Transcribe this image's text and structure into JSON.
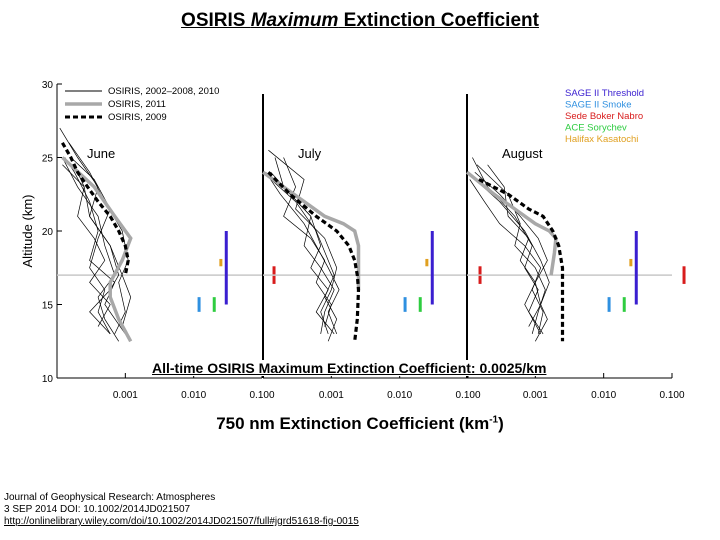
{
  "slide": {
    "title_prefix": "OSIRIS ",
    "title_emph": "Maximum",
    "title_suffix": " Extinction Coefficient",
    "overlay_text": "All-time OSIRIS Maximum Extinction Coefficient: 0.0025/km",
    "caption_main": "750 nm Extinction Coefficient (km",
    "caption_sup": "-1",
    "caption_end": ")",
    "citation": {
      "journal": "Journal of Geophysical Research: Atmospheres",
      "date_doi": "3 SEP 2014 DOI: 10.1002/2014JD021507",
      "url": "http://onlinelibrary.wiley.com/doi/10.1002/2014JD021507/full#jgrd51618-fig-0015"
    }
  },
  "chart_data": {
    "type": "line",
    "ylabel": "Altitude (km)",
    "ylim": [
      10,
      30
    ],
    "yticks": [
      "10",
      "15",
      "20",
      "25",
      "30"
    ],
    "xscale": "log",
    "xlim": [
      0.0001,
      0.1
    ],
    "xticks": [
      "0.001",
      "0.010",
      "0.100"
    ],
    "tropopause_km": 17,
    "legend_left": [
      {
        "label": "OSIRIS, 2002–2008, 2010",
        "style": "thin-black"
      },
      {
        "label": "OSIRIS, 2011",
        "style": "thick-gray"
      },
      {
        "label": "OSIRIS, 2009",
        "style": "thick-dashed-black"
      }
    ],
    "legend_right": [
      {
        "label": "SAGE II Threshold",
        "color": "#3a1fd0"
      },
      {
        "label": "SAGE II Smoke",
        "color": "#2f90e0"
      },
      {
        "label": "Sede Boker Nabro",
        "color": "#d81c1c"
      },
      {
        "label": "ACE Sorychev",
        "color": "#2ecc40"
      },
      {
        "label": "Halifax Kasatochi",
        "color": "#e0a020"
      }
    ],
    "panels": [
      {
        "label": "June",
        "series_2011": {
          "x": [
            0.00012,
            0.00035,
            0.0007,
            0.0012,
            0.0009,
            0.0006,
            0.0006,
            0.0008,
            0.0012
          ],
          "y": [
            25,
            23,
            21,
            19.5,
            18,
            16.5,
            15.5,
            14,
            12.5
          ]
        },
        "series_2009": {
          "x": [
            0.00012,
            0.00016,
            0.0002,
            0.00028,
            0.0004,
            0.0006,
            0.0008,
            0.001,
            0.0011,
            0.001
          ],
          "y": [
            26,
            25,
            24,
            23,
            22,
            21,
            20,
            19,
            18,
            17
          ]
        },
        "background_profiles": [
          {
            "x": [
              0.00012,
              0.0002,
              0.0004,
              0.0005,
              0.0007,
              0.0004,
              0.0005,
              0.0008
            ],
            "y": [
              25,
              23,
              21,
              19,
              17,
              15.5,
              14,
              12.5
            ]
          },
          {
            "x": [
              0.0002,
              0.00025,
              0.0003,
              0.0006,
              0.0008,
              0.0006,
              0.0003,
              0.0006
            ],
            "y": [
              24,
              23,
              21,
              19,
              17,
              16,
              14.5,
              13
            ]
          },
          {
            "x": [
              0.00015,
              0.0003,
              0.0005,
              0.0009,
              0.0011,
              0.0008,
              0.001,
              0.0007
            ],
            "y": [
              26,
              24,
              22,
              20,
              18,
              16.5,
              14.5,
              13
            ]
          },
          {
            "x": [
              0.00013,
              0.00018,
              0.0003,
              0.0004,
              0.0003,
              0.0007,
              0.0005,
              0.001
            ],
            "y": [
              25,
              24,
              22,
              20,
              18,
              16.5,
              15,
              13
            ]
          },
          {
            "x": [
              0.00011,
              0.0002,
              0.0004,
              0.0003,
              0.0006,
              0.0009,
              0.0012,
              0.0009
            ],
            "y": [
              27,
              25,
              23,
              21,
              19,
              17,
              15.5,
              13.5
            ]
          },
          {
            "x": [
              0.00016,
              0.00035,
              0.0006,
              0.0004,
              0.0003,
              0.0005,
              0.0004,
              0.0006
            ],
            "y": [
              25,
              23.5,
              21.5,
              19.5,
              17.5,
              16,
              14.5,
              13
            ]
          },
          {
            "x": [
              0.00012,
              0.00025,
              0.0002,
              0.00035,
              0.0005,
              0.0003,
              0.0006,
              0.0004
            ],
            "y": [
              24.5,
              23,
              21,
              19.5,
              18,
              16.5,
              15,
              13.5
            ]
          }
        ],
        "markers": [
          {
            "color": "#3a1fd0",
            "x": 0.03,
            "y_bottom": 15,
            "y_top": 20
          },
          {
            "color": "#2f90e0",
            "x": 0.012,
            "y_bottom": 14.5,
            "y_top": 15.5
          },
          {
            "color": "#2ecc40",
            "x": 0.02,
            "y_bottom": 14.5,
            "y_top": 15.5
          },
          {
            "color": "#e0a020",
            "x": 0.025,
            "y_bottom": 17.6,
            "y_top": 18.1
          },
          {
            "color": "#d81c1c",
            "x": 0.15,
            "y_bottom": 16.4,
            "y_top": 17.6
          }
        ]
      },
      {
        "label": "July",
        "series_2011": {
          "x": [
            0.0001,
            0.0002,
            0.0004,
            0.0008,
            0.0015,
            0.0022,
            0.0025,
            0.0025,
            0.0025
          ],
          "y": [
            24,
            23,
            22,
            21,
            20.5,
            20,
            19,
            17,
            16
          ]
        },
        "series_2009": {
          "x": [
            0.00012,
            0.00025,
            0.0006,
            0.0012,
            0.0018,
            0.0022,
            0.0024,
            0.0025,
            0.0024,
            0.0022
          ],
          "y": [
            24,
            22.5,
            21,
            20,
            19,
            18,
            17,
            16,
            14,
            12.5
          ]
        },
        "background_profiles": [
          {
            "x": [
              0.0001,
              0.0003,
              0.0006,
              0.0009,
              0.0011,
              0.0008,
              0.0012,
              0.0009
            ],
            "y": [
              24,
              22,
              20,
              18,
              17,
              15.5,
              14,
              12.5
            ]
          },
          {
            "x": [
              0.00015,
              0.0002,
              0.0005,
              0.0007,
              0.0005,
              0.0009,
              0.0006,
              0.0011
            ],
            "y": [
              25,
              23,
              21,
              19,
              17.5,
              16,
              14.5,
              13
            ]
          },
          {
            "x": [
              0.00012,
              0.0004,
              0.0003,
              0.0008,
              0.0012,
              0.001,
              0.0007,
              0.0009
            ],
            "y": [
              25.5,
              23.5,
              21.5,
              19.5,
              17.5,
              16,
              14.5,
              13
            ]
          },
          {
            "x": [
              0.00011,
              0.00018,
              0.0004,
              0.0006,
              0.0009,
              0.0013,
              0.0009,
              0.0012
            ],
            "y": [
              24,
              22.5,
              20.5,
              19,
              17.5,
              16,
              14.5,
              13
            ]
          },
          {
            "x": [
              0.0002,
              0.0003,
              0.0002,
              0.0005,
              0.0008,
              0.0006,
              0.001,
              0.0008
            ],
            "y": [
              25,
              23,
              21,
              19.5,
              18,
              16.5,
              15,
              13.5
            ]
          },
          {
            "x": [
              0.00013,
              0.00025,
              0.0005,
              0.0004,
              0.0007,
              0.0011,
              0.0008,
              0.0007
            ],
            "y": [
              24,
              22.5,
              21,
              19,
              17.5,
              16,
              14.5,
              13
            ]
          }
        ],
        "markers": [
          {
            "color": "#3a1fd0",
            "x": 0.03,
            "y_bottom": 15,
            "y_top": 20
          },
          {
            "color": "#2f90e0",
            "x": 0.012,
            "y_bottom": 14.5,
            "y_top": 15.5
          },
          {
            "color": "#2ecc40",
            "x": 0.02,
            "y_bottom": 14.5,
            "y_top": 15.5
          },
          {
            "color": "#e0a020",
            "x": 0.025,
            "y_bottom": 17.6,
            "y_top": 18.1
          },
          {
            "color": "#d81c1c",
            "x": 0.15,
            "y_bottom": 16.4,
            "y_top": 17.6
          }
        ]
      },
      {
        "label": "August",
        "series_2011": {
          "x": [
            0.0001,
            0.00025,
            0.0005,
            0.001,
            0.0016,
            0.002,
            0.0019,
            0.0017
          ],
          "y": [
            24,
            22.5,
            21.5,
            20.5,
            20,
            19.5,
            18.5,
            17
          ]
        },
        "series_2009": {
          "x": [
            0.00015,
            0.0004,
            0.0008,
            0.0013,
            0.0018,
            0.0022,
            0.0025,
            0.0025,
            0.0025
          ],
          "y": [
            23.5,
            22.5,
            21.5,
            21,
            20,
            19,
            17.5,
            15,
            12.5
          ]
        },
        "background_profiles": [
          {
            "x": [
              0.0001,
              0.0003,
              0.0007,
              0.0012,
              0.0016,
              0.0012,
              0.0015,
              0.001
            ],
            "y": [
              24,
              22,
              20,
              18,
              16.5,
              15,
              14,
              12.5
            ]
          },
          {
            "x": [
              0.00012,
              0.0002,
              0.0005,
              0.0009,
              0.0007,
              0.0011,
              0.0008,
              0.0013
            ],
            "y": [
              25,
              23,
              21,
              19,
              17.5,
              16,
              14.5,
              13
            ]
          },
          {
            "x": [
              0.00014,
              0.0004,
              0.0006,
              0.0005,
              0.001,
              0.0014,
              0.0011,
              0.0009
            ],
            "y": [
              24.5,
              22.5,
              20.5,
              19,
              17.5,
              16,
              14.5,
              13
            ]
          },
          {
            "x": [
              0.00011,
              0.00018,
              0.0003,
              0.0007,
              0.0012,
              0.0009,
              0.0013,
              0.0011
            ],
            "y": [
              23.5,
              22,
              20.5,
              19,
              17.5,
              16,
              14.5,
              13
            ]
          },
          {
            "x": [
              0.0002,
              0.00035,
              0.0004,
              0.0008,
              0.0006,
              0.001,
              0.0012,
              0.0008
            ],
            "y": [
              24.5,
              23,
              21,
              19.5,
              18,
              16.5,
              15,
              13.5
            ]
          },
          {
            "x": [
              0.00013,
              0.0003,
              0.0006,
              0.0011,
              0.0015,
              0.001,
              0.0007,
              0.0012
            ],
            "y": [
              24,
              22.5,
              21,
              19.5,
              18,
              16.5,
              15,
              13
            ]
          }
        ],
        "markers": [
          {
            "color": "#3a1fd0",
            "x": 0.03,
            "y_bottom": 15,
            "y_top": 20
          },
          {
            "color": "#2f90e0",
            "x": 0.012,
            "y_bottom": 14.5,
            "y_top": 15.5
          },
          {
            "color": "#2ecc40",
            "x": 0.02,
            "y_bottom": 14.5,
            "y_top": 15.5
          },
          {
            "color": "#e0a020",
            "x": 0.025,
            "y_bottom": 17.6,
            "y_top": 18.1
          },
          {
            "color": "#d81c1c",
            "x": 0.15,
            "y_bottom": 16.4,
            "y_top": 17.6
          }
        ]
      }
    ]
  }
}
